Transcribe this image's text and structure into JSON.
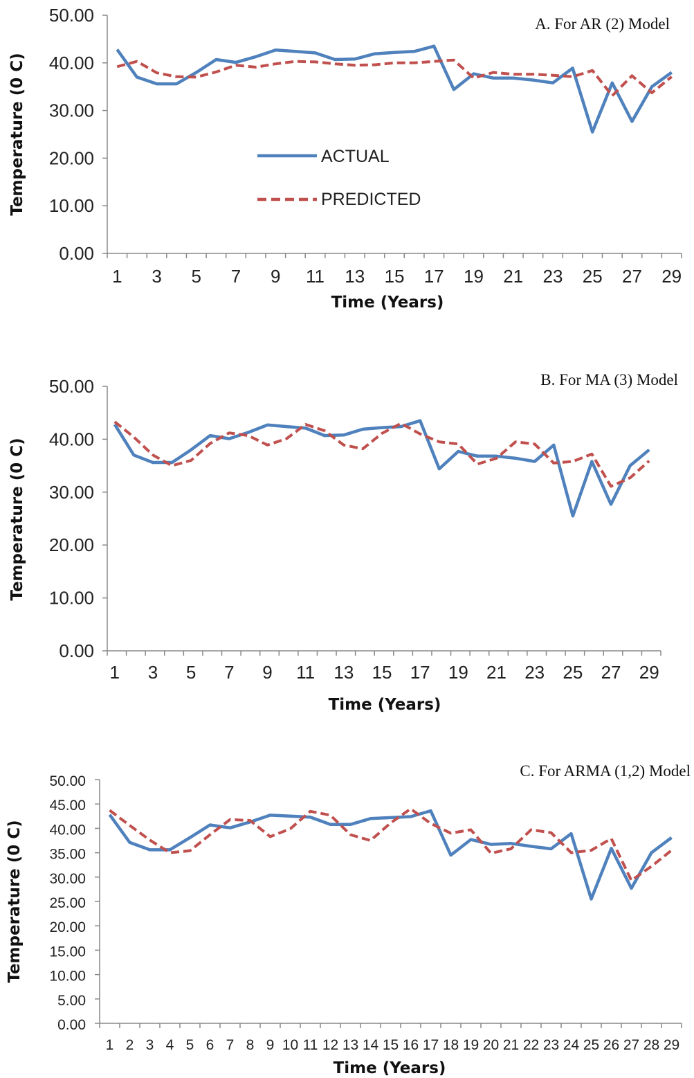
{
  "colors": {
    "actual": "#4F81BD",
    "predicted": "#C0504D",
    "axis": "#888888"
  },
  "legend": {
    "actual_label": "ACTUAL",
    "predicted_label": "PREDICTED"
  },
  "chart_data": [
    {
      "type": "line",
      "title": "A. For AR (2) Model",
      "xlabel": "Time (Years)",
      "ylabel": "Temperature (0 C)",
      "ylim": [
        0,
        50
      ],
      "yticks": [
        "0.00",
        "10.00",
        "20.00",
        "30.00",
        "40.00",
        "50.00"
      ],
      "xticks": [
        "1",
        "3",
        "5",
        "7",
        "9",
        "11",
        "13",
        "15",
        "17",
        "19",
        "21",
        "23",
        "25",
        "27",
        "29"
      ],
      "x": [
        1,
        2,
        3,
        4,
        5,
        6,
        7,
        8,
        9,
        10,
        11,
        12,
        13,
        14,
        15,
        16,
        17,
        18,
        19,
        20,
        21,
        22,
        23,
        24,
        25,
        26,
        27,
        28,
        29
      ],
      "legend_position": "center-left",
      "series": [
        {
          "name": "ACTUAL",
          "values": [
            42.8,
            37.0,
            35.6,
            35.6,
            38.0,
            40.7,
            40.1,
            41.3,
            42.7,
            42.4,
            42.1,
            40.7,
            40.8,
            41.9,
            42.2,
            42.4,
            43.5,
            34.4,
            37.7,
            36.8,
            36.8,
            36.4,
            35.8,
            38.9,
            25.5,
            35.8,
            27.7,
            35.0,
            38.0
          ]
        },
        {
          "name": "PREDICTED",
          "values": [
            39.2,
            40.3,
            37.9,
            37.1,
            37.0,
            38.1,
            39.5,
            39.1,
            39.8,
            40.3,
            40.2,
            39.8,
            39.5,
            39.6,
            40.0,
            40.0,
            40.3,
            40.6,
            36.8,
            38.0,
            37.6,
            37.6,
            37.4,
            37.1,
            38.4,
            33.1,
            37.3,
            33.7,
            37.1
          ]
        }
      ]
    },
    {
      "type": "line",
      "title": "B. For MA (3) Model",
      "xlabel": "Time (Years)",
      "ylabel": "Temperature (0 C)",
      "ylim": [
        0,
        50
      ],
      "yticks": [
        "0.00",
        "10.00",
        "20.00",
        "30.00",
        "40.00",
        "50.00"
      ],
      "xticks": [
        "1",
        "3",
        "5",
        "7",
        "9",
        "11",
        "13",
        "15",
        "17",
        "19",
        "21",
        "23",
        "25",
        "27",
        "29"
      ],
      "x": [
        1,
        2,
        3,
        4,
        5,
        6,
        7,
        8,
        9,
        10,
        11,
        12,
        13,
        14,
        15,
        16,
        17,
        18,
        19,
        20,
        21,
        22,
        23,
        24,
        25,
        26,
        27,
        28,
        29
      ],
      "series": [
        {
          "name": "ACTUAL",
          "values": [
            42.8,
            37.0,
            35.6,
            35.6,
            38.0,
            40.7,
            40.1,
            41.3,
            42.7,
            42.4,
            42.1,
            40.7,
            40.8,
            41.9,
            42.2,
            42.4,
            43.5,
            34.4,
            37.7,
            36.8,
            36.8,
            36.4,
            35.8,
            38.9,
            25.5,
            35.8,
            27.7,
            35.0,
            38.0
          ]
        },
        {
          "name": "PREDICTED",
          "values": [
            43.3,
            40.4,
            37.0,
            35.0,
            36.0,
            39.2,
            41.2,
            40.7,
            38.9,
            40.1,
            42.8,
            41.6,
            38.9,
            38.2,
            41.1,
            43.0,
            41.0,
            39.5,
            39.1,
            35.3,
            36.4,
            39.5,
            39.1,
            35.5,
            35.8,
            37.2,
            31.1,
            32.7,
            35.9
          ]
        }
      ]
    },
    {
      "type": "line",
      "title": "C. For ARMA (1,2) Model",
      "xlabel": "Time (Years)",
      "ylabel": "Temperature (0 C)",
      "ylim": [
        0,
        50
      ],
      "yticks": [
        "0.00",
        "5.00",
        "10.00",
        "15.00",
        "20.00",
        "25.00",
        "30.00",
        "35.00",
        "40.00",
        "45.00",
        "50.00"
      ],
      "xticks": [
        "1",
        "2",
        "3",
        "4",
        "5",
        "6",
        "7",
        "8",
        "9",
        "10",
        "11",
        "12",
        "13",
        "14",
        "15",
        "16",
        "17",
        "18",
        "19",
        "20",
        "21",
        "22",
        "23",
        "24",
        "25",
        "26",
        "27",
        "28",
        "29"
      ],
      "x": [
        1,
        2,
        3,
        4,
        5,
        6,
        7,
        8,
        9,
        10,
        11,
        12,
        13,
        14,
        15,
        16,
        17,
        18,
        19,
        20,
        21,
        22,
        23,
        24,
        25,
        26,
        27,
        28,
        29
      ],
      "series": [
        {
          "name": "ACTUAL",
          "values": [
            42.8,
            37.1,
            35.6,
            35.6,
            38.1,
            40.7,
            40.1,
            41.3,
            42.7,
            42.5,
            42.3,
            40.8,
            40.8,
            42.0,
            42.2,
            42.4,
            43.6,
            34.5,
            37.7,
            36.7,
            36.9,
            36.3,
            35.8,
            38.9,
            25.5,
            35.9,
            27.7,
            35.0,
            38.1
          ]
        },
        {
          "name": "PREDICTED",
          "values": [
            43.7,
            40.6,
            37.6,
            35.0,
            35.4,
            38.7,
            41.8,
            41.6,
            38.3,
            39.9,
            43.5,
            42.7,
            38.7,
            37.5,
            41.1,
            44.0,
            41.0,
            39.0,
            39.7,
            34.9,
            35.8,
            39.7,
            39.1,
            35.0,
            35.5,
            37.9,
            29.3,
            32.2,
            35.5
          ]
        }
      ]
    }
  ]
}
